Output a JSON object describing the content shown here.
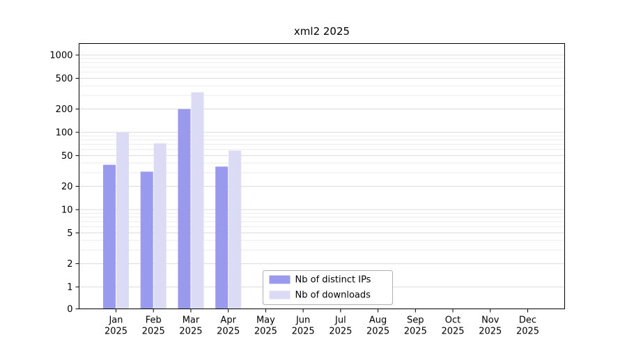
{
  "chart_data": {
    "type": "bar",
    "title": "xml2 2025",
    "year": "2025",
    "categories": [
      "Jan",
      "Feb",
      "Mar",
      "Apr",
      "May",
      "Jun",
      "Jul",
      "Aug",
      "Sep",
      "Oct",
      "Nov",
      "Dec"
    ],
    "series": [
      {
        "name": "Nb of distinct IPs",
        "color": "#9999ee",
        "values": [
          38,
          31,
          200,
          36,
          0,
          0,
          0,
          0,
          0,
          0,
          0,
          0
        ]
      },
      {
        "name": "Nb of downloads",
        "color": "#dbdbf6",
        "values": [
          100,
          72,
          330,
          58,
          0,
          0,
          0,
          0,
          0,
          0,
          0,
          0
        ]
      }
    ],
    "yscale": "log",
    "yticks": [
      0,
      1,
      2,
      5,
      10,
      20,
      50,
      100,
      200,
      500,
      1000
    ],
    "ylim": [
      0,
      1000
    ],
    "xlabel": "",
    "ylabel": "",
    "grid": true,
    "legend_position": "lower-center-inside",
    "colors": {
      "major_grid": "#d9d9d9",
      "minor_grid": "#ebebeb",
      "axis": "#000000",
      "legend_border": "#b0b0b0",
      "background": "#ffffff"
    }
  }
}
